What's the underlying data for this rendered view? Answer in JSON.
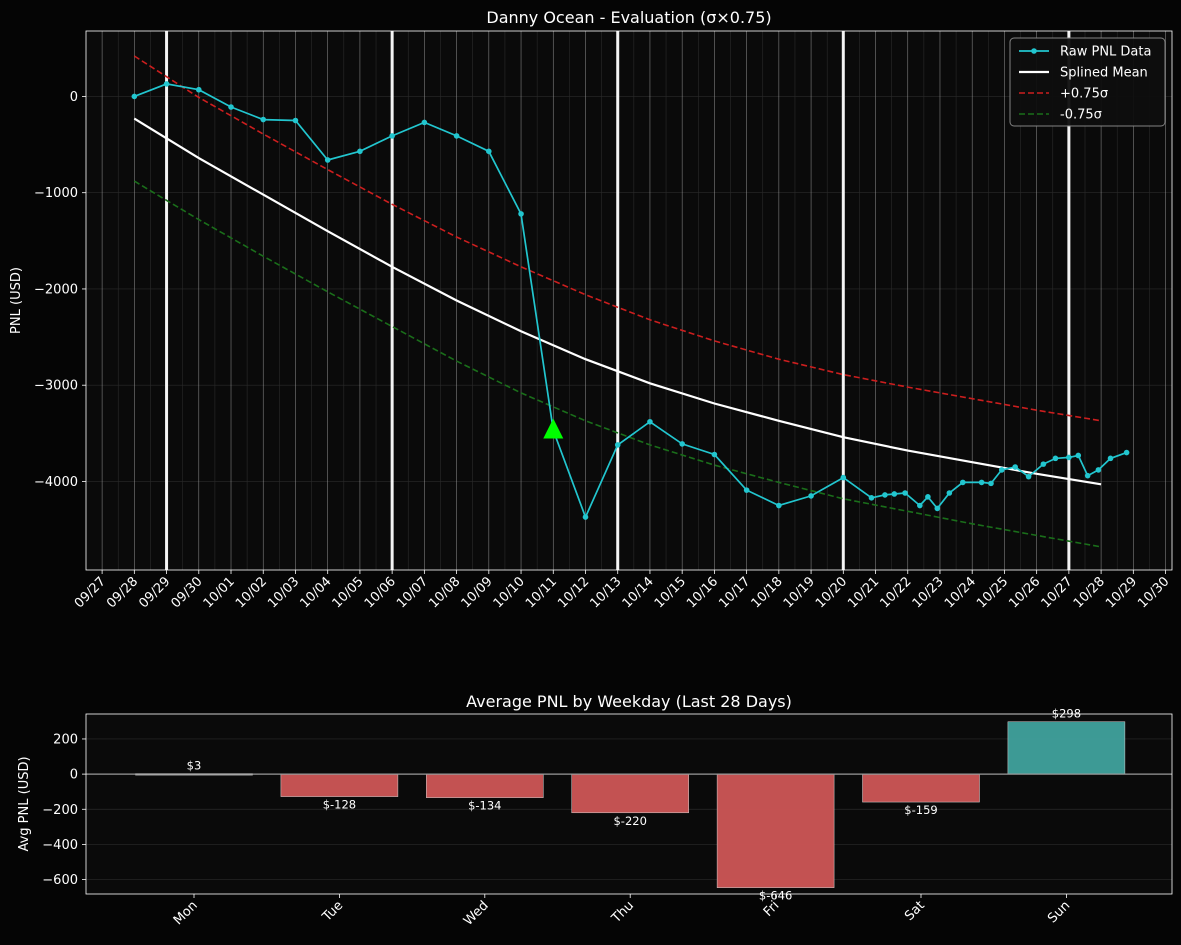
{
  "colors": {
    "background": "#050505",
    "axes_bg": "#0a0a0a",
    "raw": "#22c6cf",
    "mean": "#ffffff",
    "upper": "#cc1e1e",
    "lower": "#1a6e1a",
    "marker": "#00ff00",
    "bar_neg": "#cd5656",
    "bar_pos": "#40a29d",
    "bar_zero": "#d8d8d8"
  },
  "chart_data": [
    {
      "type": "line",
      "title": "Danny Ocean - Evaluation (σ×0.75)",
      "xlabel": "",
      "ylabel": "PNL (USD)",
      "x_range": [
        "09/27",
        "10/30"
      ],
      "xlim_days": [
        -0.5,
        33.2
      ],
      "ylim": [
        -4920,
        680
      ],
      "y_ticks": [
        0,
        -1000,
        -2000,
        -3000,
        -4000
      ],
      "y_tick_labels": [
        "0",
        "−1000",
        "−2000",
        "−3000",
        "−4000"
      ],
      "x_tick_labels": [
        "09/27",
        "09/28",
        "09/29",
        "09/30",
        "10/01",
        "10/02",
        "10/03",
        "10/04",
        "10/05",
        "10/06",
        "10/07",
        "10/08",
        "10/09",
        "10/10",
        "10/11",
        "10/12",
        "10/13",
        "10/14",
        "10/15",
        "10/16",
        "10/17",
        "10/18",
        "10/19",
        "10/20",
        "10/21",
        "10/22",
        "10/23",
        "10/24",
        "10/25",
        "10/26",
        "10/27",
        "10/28",
        "10/29",
        "10/30"
      ],
      "grid": true,
      "week_markers": [
        "09/29",
        "10/06",
        "10/13",
        "10/20",
        "10/27"
      ],
      "legend_position": "top-right",
      "series": [
        {
          "name": "Raw PNL Data",
          "style": "line-with-dots",
          "points": [
            [
              "09/28",
              0
            ],
            [
              "09/29",
              130
            ],
            [
              "09/30",
              70
            ],
            [
              "10/01",
              -110
            ],
            [
              "10/02",
              -240
            ],
            [
              "10/03",
              -250
            ],
            [
              "10/04",
              -660
            ],
            [
              "10/05",
              -570
            ],
            [
              "10/06",
              -410
            ],
            [
              "10/07",
              -270
            ],
            [
              "10/08",
              -410
            ],
            [
              "10/09",
              -570
            ],
            [
              "10/10",
              -1220
            ],
            [
              "10/11",
              -3470
            ],
            [
              "10/12",
              -4370
            ],
            [
              "10/13",
              -3620
            ],
            [
              "10/14",
              -3380
            ],
            [
              "10/15",
              -3610
            ],
            [
              "10/16",
              -3720
            ],
            [
              "10/17",
              -4090
            ],
            [
              "10/18",
              -4250
            ],
            [
              "10/19",
              -4150
            ],
            [
              "10/20",
              -3960
            ],
            [
              "10/20 21:00",
              -4170
            ],
            [
              "10/21 07:00",
              -4140
            ],
            [
              "10/21 14:00",
              -4130
            ],
            [
              "10/21 22:00",
              -4120
            ],
            [
              "10/22 09:00",
              -4250
            ],
            [
              "10/22 15:00",
              -4160
            ],
            [
              "10/22 22:00",
              -4280
            ],
            [
              "10/23 07:00",
              -4120
            ],
            [
              "10/23 17:00",
              -4010
            ],
            [
              "10/24 07:00",
              -4010
            ],
            [
              "10/24 14:00",
              -4020
            ],
            [
              "10/24 22:00",
              -3880
            ],
            [
              "10/25 08:00",
              -3850
            ],
            [
              "10/25 18:00",
              -3950
            ],
            [
              "10/26 05:00",
              -3820
            ],
            [
              "10/26 14:00",
              -3760
            ],
            [
              "10/27 00:00",
              -3750
            ],
            [
              "10/27 07:00",
              -3730
            ],
            [
              "10/27 14:00",
              -3940
            ],
            [
              "10/27 22:00",
              -3880
            ],
            [
              "10/28 07:00",
              -3760
            ],
            [
              "10/28 19:00",
              -3700
            ]
          ]
        },
        {
          "name": "Splined Mean",
          "style": "solid",
          "points": [
            [
              "09/28",
              -230
            ],
            [
              "09/30",
              -640
            ],
            [
              "10/02",
              -1020
            ],
            [
              "10/04",
              -1400
            ],
            [
              "10/06",
              -1770
            ],
            [
              "10/08",
              -2120
            ],
            [
              "10/10",
              -2440
            ],
            [
              "10/12",
              -2730
            ],
            [
              "10/14",
              -2980
            ],
            [
              "10/16",
              -3190
            ],
            [
              "10/18",
              -3370
            ],
            [
              "10/20",
              -3540
            ],
            [
              "10/22",
              -3680
            ],
            [
              "10/24",
              -3800
            ],
            [
              "10/26",
              -3920
            ],
            [
              "10/28",
              -4030
            ]
          ]
        },
        {
          "name": "+0.75σ",
          "style": "dashed",
          "points": [
            [
              "09/28",
              420
            ],
            [
              "09/30",
              -10
            ],
            [
              "10/02",
              -390
            ],
            [
              "10/04",
              -760
            ],
            [
              "10/06",
              -1120
            ],
            [
              "10/08",
              -1460
            ],
            [
              "10/10",
              -1770
            ],
            [
              "10/12",
              -2060
            ],
            [
              "10/14",
              -2320
            ],
            [
              "10/16",
              -2540
            ],
            [
              "10/18",
              -2730
            ],
            [
              "10/20",
              -2890
            ],
            [
              "10/22",
              -3020
            ],
            [
              "10/24",
              -3140
            ],
            [
              "10/26",
              -3260
            ],
            [
              "10/28",
              -3370
            ]
          ]
        },
        {
          "name": "-0.75σ",
          "style": "dashed",
          "points": [
            [
              "09/28",
              -880
            ],
            [
              "09/30",
              -1280
            ],
            [
              "10/02",
              -1660
            ],
            [
              "10/04",
              -2030
            ],
            [
              "10/06",
              -2390
            ],
            [
              "10/08",
              -2750
            ],
            [
              "10/10",
              -3080
            ],
            [
              "10/12",
              -3370
            ],
            [
              "10/14",
              -3620
            ],
            [
              "10/16",
              -3830
            ],
            [
              "10/18",
              -4010
            ],
            [
              "10/20",
              -4180
            ],
            [
              "10/22",
              -4310
            ],
            [
              "10/24",
              -4440
            ],
            [
              "10/26",
              -4560
            ],
            [
              "10/28",
              -4680
            ]
          ]
        }
      ],
      "markers": [
        {
          "shape": "triangle-up",
          "x": "10/11",
          "y": -3470
        }
      ]
    },
    {
      "type": "bar",
      "title": "Average PNL by Weekday (Last 28 Days)",
      "xlabel": "",
      "ylabel": "Avg PNL (USD)",
      "categories": [
        "Mon",
        "Tue",
        "Wed",
        "Thu",
        "Fri",
        "Sat",
        "Sun"
      ],
      "values": [
        3,
        -128,
        -134,
        -220,
        -646,
        -159,
        298
      ],
      "data_labels": [
        "$3",
        "$-128",
        "$-134",
        "$-220",
        "$-646",
        "$-159",
        "$298"
      ],
      "ylim": [
        -682,
        342
      ],
      "y_ticks": [
        200,
        0,
        -200,
        -400,
        -600
      ],
      "y_tick_labels": [
        "200",
        "0",
        "−200",
        "−400",
        "−600"
      ],
      "grid": true
    }
  ]
}
